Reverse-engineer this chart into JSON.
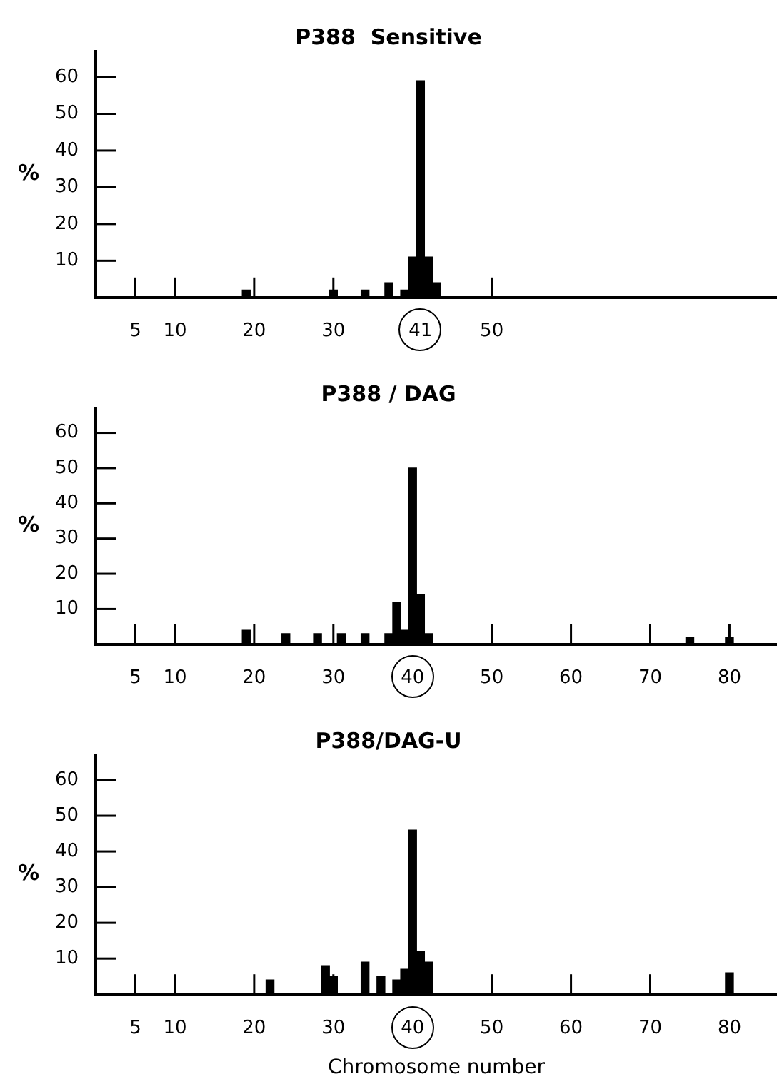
{
  "chart_data": [
    {
      "type": "bar",
      "title": "P388  Sensitive",
      "ylabel": "%",
      "color": "#000000",
      "x": [
        19,
        30,
        34,
        37,
        39,
        40,
        41,
        42,
        43
      ],
      "values": [
        2,
        2,
        2,
        4,
        2,
        11,
        59,
        11,
        4
      ],
      "xlim": [
        0,
        86
      ],
      "xticks": [
        5,
        10,
        20,
        30,
        41,
        50
      ],
      "ylim": [
        0,
        67
      ],
      "yticks": [
        10,
        20,
        30,
        40,
        50,
        60
      ]
    },
    {
      "type": "bar",
      "title": "P388 / DAG",
      "ylabel": "%",
      "color": "#000000",
      "x": [
        19,
        24,
        28,
        31,
        34,
        37,
        38,
        39,
        40,
        41,
        42,
        75,
        80
      ],
      "values": [
        4,
        3,
        3,
        3,
        3,
        3,
        12,
        4,
        50,
        14,
        3,
        2,
        2
      ],
      "xlim": [
        0,
        86
      ],
      "xticks": [
        5,
        10,
        20,
        30,
        40,
        50,
        60,
        70,
        80
      ],
      "ylim": [
        0,
        67
      ],
      "yticks": [
        10,
        20,
        30,
        40,
        50,
        60
      ]
    },
    {
      "type": "bar",
      "title": "P388/DAG-U",
      "ylabel": "%",
      "xlabel": "Chromosome number",
      "color": "#000000",
      "x": [
        22,
        29,
        30,
        34,
        36,
        38,
        39,
        40,
        41,
        42,
        80
      ],
      "values": [
        4,
        8,
        5,
        9,
        5,
        4,
        7,
        46,
        12,
        9,
        6
      ],
      "xlim": [
        0,
        86
      ],
      "xticks": [
        5,
        10,
        20,
        30,
        40,
        50,
        60,
        70,
        80
      ],
      "ylim": [
        0,
        67
      ],
      "yticks": [
        10,
        20,
        30,
        40,
        50,
        60
      ]
    }
  ]
}
